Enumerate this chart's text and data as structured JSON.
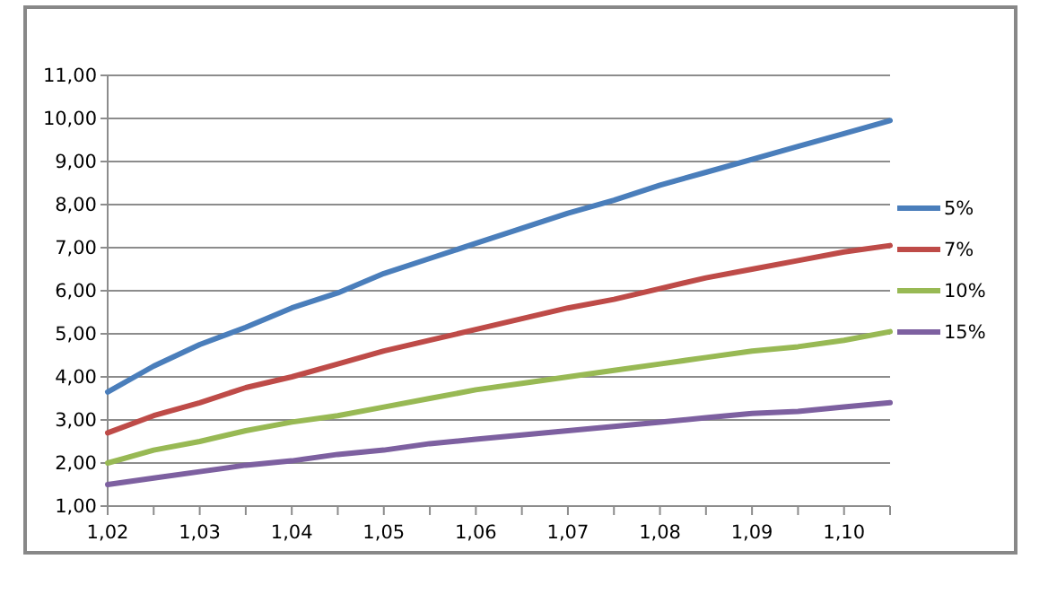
{
  "chart_data": {
    "type": "line",
    "x": [
      1.02,
      1.025,
      1.03,
      1.035,
      1.04,
      1.045,
      1.05,
      1.055,
      1.06,
      1.065,
      1.07,
      1.075,
      1.08,
      1.085,
      1.09,
      1.095,
      1.1,
      1.105
    ],
    "series": [
      {
        "name": "5%",
        "color": "#4a7ebb",
        "values": [
          3.65,
          4.25,
          4.75,
          5.15,
          5.6,
          5.95,
          6.4,
          6.75,
          7.1,
          7.45,
          7.8,
          8.1,
          8.45,
          8.75,
          9.05,
          9.35,
          9.65,
          9.95
        ]
      },
      {
        "name": "7%",
        "color": "#be4b48",
        "values": [
          2.7,
          3.1,
          3.4,
          3.75,
          4.0,
          4.3,
          4.6,
          4.85,
          5.1,
          5.35,
          5.6,
          5.8,
          6.05,
          6.3,
          6.5,
          6.7,
          6.9,
          7.05
        ]
      },
      {
        "name": "10%",
        "color": "#98b954",
        "values": [
          2.0,
          2.3,
          2.5,
          2.75,
          2.95,
          3.1,
          3.3,
          3.5,
          3.7,
          3.85,
          4.0,
          4.15,
          4.3,
          4.45,
          4.6,
          4.7,
          4.85,
          5.05
        ]
      },
      {
        "name": "15%",
        "color": "#7d60a0",
        "values": [
          1.5,
          1.65,
          1.8,
          1.95,
          2.05,
          2.2,
          2.3,
          2.45,
          2.55,
          2.65,
          2.75,
          2.85,
          2.95,
          3.05,
          3.15,
          3.2,
          3.3,
          3.4
        ]
      }
    ],
    "xlim": [
      1.02,
      1.105
    ],
    "xticks": [
      {
        "value": 1.02,
        "label": "1,02"
      },
      {
        "value": 1.025,
        "label": null
      },
      {
        "value": 1.03,
        "label": "1,03"
      },
      {
        "value": 1.035,
        "label": null
      },
      {
        "value": 1.04,
        "label": "1,04"
      },
      {
        "value": 1.045,
        "label": null
      },
      {
        "value": 1.05,
        "label": "1,05"
      },
      {
        "value": 1.055,
        "label": null
      },
      {
        "value": 1.06,
        "label": "1,06"
      },
      {
        "value": 1.065,
        "label": null
      },
      {
        "value": 1.07,
        "label": "1,07"
      },
      {
        "value": 1.075,
        "label": null
      },
      {
        "value": 1.08,
        "label": "1,08"
      },
      {
        "value": 1.085,
        "label": null
      },
      {
        "value": 1.09,
        "label": "1,09"
      },
      {
        "value": 1.095,
        "label": null
      },
      {
        "value": 1.1,
        "label": "1,10"
      },
      {
        "value": 1.105,
        "label": null
      }
    ],
    "ylim": [
      1,
      11
    ],
    "yticks": [
      {
        "value": 1,
        "label": "1,00"
      },
      {
        "value": 2,
        "label": "2,00"
      },
      {
        "value": 3,
        "label": "3,00"
      },
      {
        "value": 4,
        "label": "4,00"
      },
      {
        "value": 5,
        "label": "5,00"
      },
      {
        "value": 6,
        "label": "6,00"
      },
      {
        "value": 7,
        "label": "7,00"
      },
      {
        "value": 8,
        "label": "8,00"
      },
      {
        "value": 9,
        "label": "9,00"
      },
      {
        "value": 10,
        "label": "10,00"
      },
      {
        "value": 11,
        "label": "11,00"
      }
    ],
    "grid": "y",
    "legend": "right",
    "marker": "none",
    "line_style": "solid"
  }
}
